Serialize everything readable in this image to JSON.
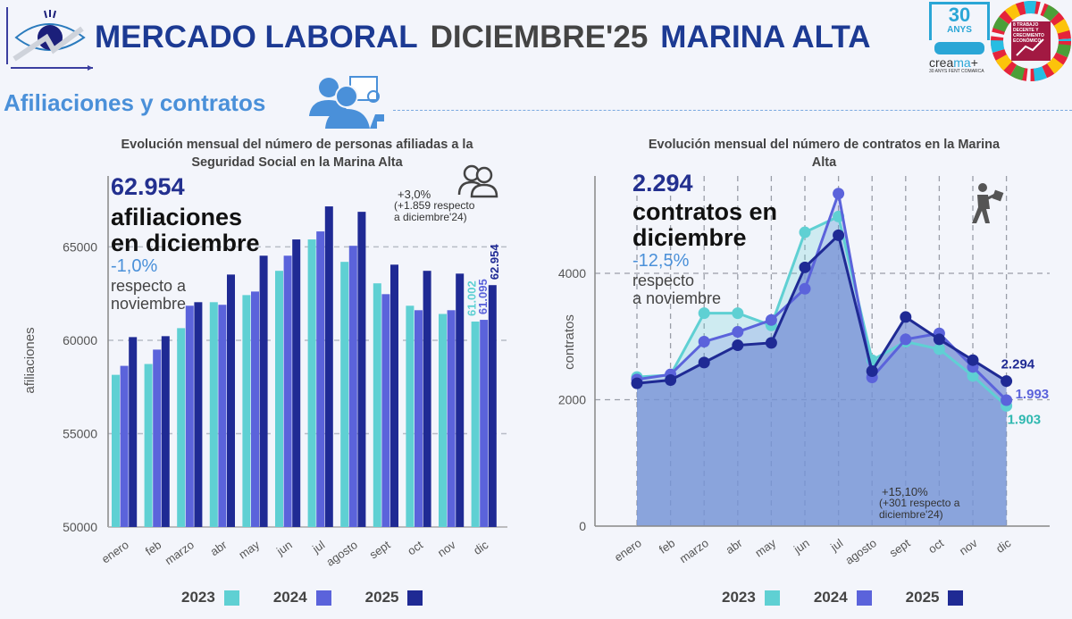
{
  "header": {
    "title_left": "MERCADO LABORAL",
    "title_mid": "DICIEMBRE'25",
    "title_right": "MARINA ALTA",
    "logo_icon": "eye-growth-chart-icon",
    "logo_right_text": "30 ANYS creama 30 ANYS FENT COMARCA",
    "sdg_text": "8 TRABAJO DECENTE Y CRECIMIENTO ECONÓMICO"
  },
  "section": {
    "title": "Afiliaciones y contratos",
    "icon": "people-workplace-icon"
  },
  "colors": {
    "2023": "#5fd0d3",
    "2024": "#5b63db",
    "2025": "#1f2a94",
    "accent": "#4a90d9"
  },
  "left": {
    "title_line1": "Evolución mensual del número de personas afiliadas a la",
    "title_line2": "Seguridad Social en la Marina Alta",
    "kpi_value": "62.954",
    "kpi_line1": "afiliaciones",
    "kpi_line2": "en diciembre",
    "pct": "-1,0%",
    "resp_line1": "respecto a",
    "resp_line2": "noviembre",
    "yoy_pct": "+3,0%",
    "yoy_line1": "(+1.859 respecto",
    "yoy_line2": "a diciembre'24)",
    "icon": "people-icon"
  },
  "right": {
    "title_line1": "Evolución mensual del número de contratos en la Marina",
    "title_line2": "Alta",
    "kpi_value": "2.294",
    "kpi_line1": "contratos en",
    "kpi_line2": "diciembre",
    "pct": "-12,5%",
    "resp_line1": "respecto",
    "resp_line2": "a noviembre",
    "yoy_pct": "+15,10%",
    "yoy_line1": "(+301 respecto a",
    "yoy_line2": "diciembre'24)",
    "icon": "walking-worker-briefcase-icon"
  },
  "legend": [
    "2023",
    "2024",
    "2025"
  ],
  "chart_data": [
    {
      "type": "bar",
      "ylabel": "afiliaciones",
      "ylim": [
        50000,
        68800
      ],
      "yticks": [
        50000,
        55000,
        60000,
        65000
      ],
      "grid": true,
      "legend_position": "bottom",
      "categories": [
        "enero",
        "feb",
        "marzo",
        "abr",
        "may",
        "jun",
        "jul",
        "agosto",
        "sept",
        "oct",
        "nov",
        "dic"
      ],
      "series": [
        {
          "name": "2023",
          "values": [
            58150,
            58730,
            60650,
            62040,
            62420,
            63720,
            65400,
            64200,
            63050,
            61850,
            61410,
            61002
          ]
        },
        {
          "name": "2024",
          "values": [
            58630,
            59500,
            61850,
            61900,
            62610,
            64530,
            65830,
            65060,
            62470,
            61610,
            61610,
            61095
          ]
        },
        {
          "name": "2025",
          "values": [
            60170,
            60220,
            62040,
            63520,
            64530,
            65400,
            67170,
            66880,
            64050,
            63720,
            63570,
            62954
          ]
        }
      ],
      "data_labels": {
        "2023": "61.002",
        "2024": "61.095",
        "2025": "62.954"
      }
    },
    {
      "type": "area",
      "ylabel": "contratos",
      "ylim": [
        0,
        5540
      ],
      "yticks": [
        0,
        2000,
        4000
      ],
      "grid": true,
      "legend_position": "bottom",
      "categories": [
        "enero",
        "feb",
        "marzo",
        "abr",
        "may",
        "jun",
        "jul",
        "agosto",
        "sept",
        "oct",
        "nov",
        "dic"
      ],
      "series": [
        {
          "name": "2023",
          "values": [
            2358,
            2390,
            3369,
            3369,
            3176,
            4649,
            4899,
            2626,
            2918,
            2800,
            2376,
            1903
          ]
        },
        {
          "name": "2024",
          "values": [
            2320,
            2400,
            2918,
            3073,
            3261,
            3755,
            5261,
            2353,
            2955,
            3049,
            2518,
            1993
          ]
        },
        {
          "name": "2025",
          "values": [
            2259,
            2311,
            2588,
            2861,
            2899,
            4094,
            4602,
            2452,
            3308,
            2955,
            2626,
            2294
          ]
        }
      ],
      "data_labels": {
        "2023": "1.903",
        "2024": "1.993",
        "2025": "2.294"
      }
    }
  ]
}
